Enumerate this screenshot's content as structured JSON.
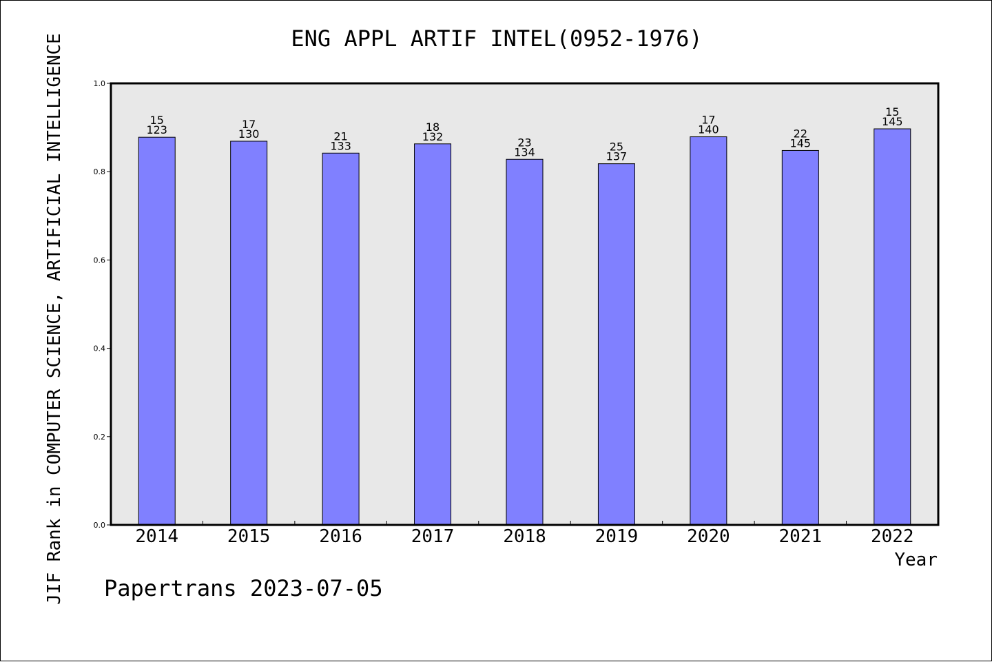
{
  "chart_data": {
    "type": "bar",
    "title": "ENG APPL ARTIF INTEL(0952-1976)",
    "xlabel": "Year",
    "ylabel": "JIF Rank in COMPUTER SCIENCE, ARTIFICIAL INTELLIGENCE",
    "categories": [
      "2014",
      "2015",
      "2016",
      "2017",
      "2018",
      "2019",
      "2020",
      "2021",
      "2022"
    ],
    "values": [
      0.878,
      0.869,
      0.842,
      0.863,
      0.828,
      0.818,
      0.879,
      0.848,
      0.897
    ],
    "rank": [
      "15",
      "17",
      "21",
      "18",
      "23",
      "25",
      "17",
      "22",
      "15"
    ],
    "total": [
      "123",
      "130",
      "133",
      "132",
      "134",
      "137",
      "140",
      "145",
      "145"
    ],
    "ylim": [
      0.0,
      1.0
    ],
    "yticks": [
      "0.0",
      "0.2",
      "0.4",
      "0.6",
      "0.8",
      "1.0"
    ],
    "grid": false,
    "legend": "none",
    "colors": {
      "bar": "#8080ff",
      "plot_bg": "#e8e8e8",
      "axis": "#000000"
    }
  },
  "footer": {
    "source": "Papertrans 2023-07-05"
  }
}
